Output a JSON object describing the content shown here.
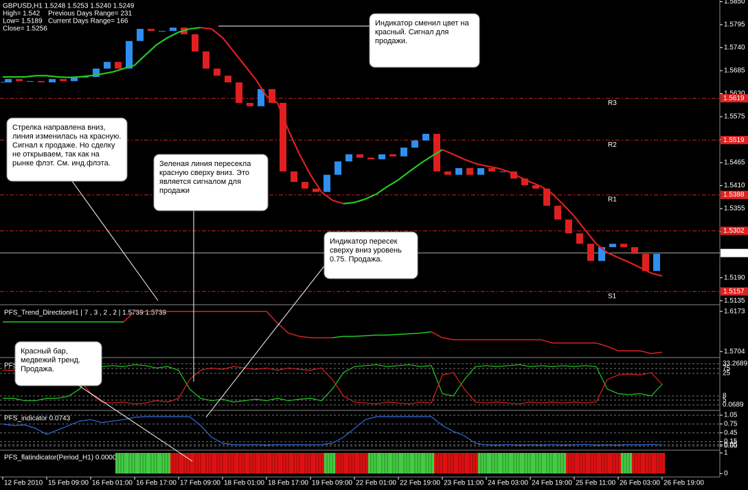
{
  "chart_data": [
    {
      "type": "candlestick",
      "title": "GBPUSD,H1 1.5248 1.5253 1.5240 1.5249",
      "info": [
        "High= 1.542",
        "Previous Days Range= 231",
        "Low= 1.5189",
        "Current Days Range= 166",
        "Close= 1.5256"
      ],
      "categories": [
        "12 Feb 2010",
        null,
        null,
        null,
        "15 Feb 09:00",
        null,
        null,
        null,
        "16 Feb 01:00",
        null,
        null,
        null,
        "16 Feb 17:00",
        null,
        null,
        null,
        "17 Feb 09:00",
        null,
        null,
        null,
        "18 Feb 01:00",
        null,
        null,
        null,
        "18 Feb 17:00",
        null,
        null,
        null,
        "19 Feb 09:00",
        null,
        null,
        null,
        "22 Feb 01:00",
        null,
        null,
        null,
        "22 Feb 19:00",
        null,
        null,
        null,
        "23 Feb 11:00",
        null,
        null,
        null,
        "24 Feb 03:00",
        null,
        null,
        null,
        "24 Feb 19:00",
        null,
        null,
        null,
        "25 Feb 11:00",
        null,
        null,
        null,
        "26 Feb 03:00",
        null,
        null,
        null,
        "26 Feb 19:00"
      ],
      "series": [
        {
          "values": [
            1.5657,
            1.5665,
            1.566,
            1.566,
            1.5657,
            1.5665,
            1.566,
            1.5669,
            1.567,
            1.569,
            1.5706,
            1.569,
            1.5756,
            1.5785,
            1.578,
            1.578,
            1.5788,
            1.5772,
            1.5731,
            1.569,
            1.5673,
            1.5657,
            1.5608,
            1.56,
            1.5641,
            1.5608,
            1.5444,
            1.5419,
            1.5403,
            1.5395,
            1.5436,
            1.5468,
            1.5485,
            1.5477,
            1.5473,
            1.5485,
            1.548,
            1.5501,
            1.5518,
            1.5534,
            1.5444,
            1.5436,
            1.5452,
            1.5436,
            1.5452,
            1.5444,
            1.5444,
            1.5427,
            1.5411,
            1.5403,
            1.5362,
            1.5329,
            1.5296,
            1.5271,
            1.523,
            1.5263,
            1.5271,
            1.5263,
            1.5247,
            1.5206,
            1.5247
          ],
          "up_color": "#2f8ff0",
          "down_color": "#e02020"
        },
        {
          "values": [
            1.567,
            1.567,
            1.567,
            1.5673,
            1.5673,
            1.567,
            1.5669,
            1.567,
            1.5673,
            1.5677,
            1.5682,
            1.569,
            1.5698,
            1.5723,
            1.5747,
            1.5764,
            1.5777,
            1.5785,
            1.5788,
            1.5785,
            1.5764,
            1.5731,
            1.5698,
            1.5665,
            1.5624,
            1.5608,
            1.5542,
            1.5485,
            1.5436,
            1.5395,
            1.5375,
            1.5367,
            1.537,
            1.5378,
            1.539,
            1.5408,
            1.5424,
            1.5444,
            1.5463,
            1.548,
            1.5496,
            1.5485,
            1.5473,
            1.5463,
            1.5457,
            1.5452,
            1.5444,
            1.5431,
            1.5419,
            1.5408,
            1.5391,
            1.5365,
            1.5337,
            1.5304,
            1.5271,
            1.525,
            1.5238,
            1.5227,
            1.5214,
            1.5201,
            1.5194
          ],
          "colors": [
            "#22cc22",
            "#22cc22",
            "#22cc22",
            "#22cc22",
            "#22cc22",
            "#22cc22",
            "#22cc22",
            "#22cc22",
            "#22cc22",
            "#22cc22",
            "#22cc22",
            "#22cc22",
            "#22cc22",
            "#22cc22",
            "#22cc22",
            "#22cc22",
            "#22cc22",
            "#22cc22",
            "#22cc22",
            "#e02020",
            "#e02020",
            "#e02020",
            "#e02020",
            "#e02020",
            "#e02020",
            "#e02020",
            "#e02020",
            "#e02020",
            "#e02020",
            "#e02020",
            "#e02020",
            "#e02020",
            "#22cc22",
            "#22cc22",
            "#22cc22",
            "#22cc22",
            "#22cc22",
            "#22cc22",
            "#22cc22",
            "#22cc22",
            "#22cc22",
            "#e02020",
            "#e02020",
            "#e02020",
            "#e02020",
            "#e02020",
            "#e02020",
            "#e02020",
            "#e02020",
            "#e02020",
            "#e02020",
            "#e02020",
            "#e02020",
            "#e02020",
            "#e02020",
            "#e02020",
            "#e02020",
            "#e02020",
            "#e02020",
            "#e02020",
            "#e02020"
          ]
        }
      ],
      "ylim": [
        1.5127,
        1.5854
      ],
      "yticks": [
        {
          "value": 1.585,
          "label": "1.5850"
        },
        1.5795,
        {
          "value": 1.574,
          "label": "1.5740"
        },
        1.5685,
        {
          "value": 1.563,
          "label": "1.5630"
        },
        1.5575,
        {
          "value": 1.552,
          "label": "1.5520"
        },
        1.5465,
        {
          "value": 1.541,
          "label": "1.5410"
        },
        1.5355,
        {
          "value": 1.53,
          "label": "1.5300"
        },
        {
          "value": 1.519,
          "label": "1.5190"
        },
        1.5135
      ],
      "grid": false,
      "levels": [
        {
          "label": "R3",
          "value": 1.5619
        },
        {
          "label": "R2",
          "value": 1.5519
        },
        {
          "label": "R1",
          "value": 1.5388
        },
        {
          "value": 1.5302
        },
        {
          "label": "S1",
          "value": 1.5157
        }
      ],
      "level_color": "#e02020",
      "current": 1.5249,
      "annotations": [
        {
          "lines": [
            "Индикатор сменил цвет на",
            "красный. Сигнал для",
            "продажи."
          ]
        },
        {
          "lines": [
            "Стрелка направлена вниз,",
            "линия изменилась на красную.",
            "Сигнал к продаже. Но сделку",
            "не открываем, так как на",
            "рынке флэт. См. инд.флэта."
          ]
        },
        {
          "lines": [
            "Зеленая линия пересекла",
            "красную сверху вниз. Это",
            "является сигналом для",
            "продажи"
          ]
        },
        {
          "lines": [
            "Индикатор пересек",
            "сверху вниз уровень",
            "0.75. Продажа."
          ]
        },
        {
          "lines": [
            "Красный бар,",
            "медвежий тренд.",
            "Продажа."
          ]
        }
      ]
    },
    {
      "type": "line",
      "title": "PFS_Trend_DirectionH1 | 7 , 3 , 2 , 2 | 1.5739 1.5739",
      "series": [
        {
          "values": [
            1.605,
            1.605,
            1.605,
            1.605,
            1.605,
            1.605,
            1.605,
            1.605,
            1.605,
            1.605,
            1.605,
            1.605,
            1.6173,
            1.6173,
            1.6173,
            1.6173,
            1.6173,
            1.6173,
            1.6173,
            1.6173,
            1.6173,
            1.6173,
            1.6173,
            1.6173,
            1.6173,
            1.6035,
            1.5919,
            1.5881,
            1.5865,
            1.5865,
            1.5865,
            1.5881,
            1.5881,
            1.5888,
            1.5896,
            1.5896,
            1.5904,
            1.5911,
            1.5919,
            1.5935,
            1.5865,
            1.5842,
            1.5842,
            1.5842,
            1.5842,
            1.5842,
            1.5842,
            1.5842,
            1.5842,
            1.5842,
            1.5804,
            1.5804,
            1.5804,
            1.5804,
            1.5804,
            1.5765,
            1.5712,
            1.5712,
            1.5712,
            1.5681,
            1.5696
          ],
          "colors": [
            "#22cc22",
            "#22cc22",
            "#22cc22",
            "#22cc22",
            "#22cc22",
            "#22cc22",
            "#22cc22",
            "#22cc22",
            "#22cc22",
            "#22cc22",
            "#22cc22",
            "#22cc22",
            "#e02020",
            "#e02020",
            "#e02020",
            "#e02020",
            "#e02020",
            "#e02020",
            "#e02020",
            "#e02020",
            "#e02020",
            "#e02020",
            "#e02020",
            "#e02020",
            "#e02020",
            "#e02020",
            "#e02020",
            "#e02020",
            "#e02020",
            "#e02020",
            "#e02020",
            "#22cc22",
            "#22cc22",
            "#22cc22",
            "#22cc22",
            "#22cc22",
            "#22cc22",
            "#22cc22",
            "#22cc22",
            "#22cc22",
            "#e02020",
            "#e02020",
            "#e02020",
            "#e02020",
            "#e02020",
            "#e02020",
            "#e02020",
            "#e02020",
            "#e02020",
            "#e02020",
            "#e02020",
            "#e02020",
            "#e02020",
            "#e02020",
            "#e02020",
            "#e02020",
            "#e02020",
            "#e02020",
            "#e02020",
            "#e02020",
            "#e02020"
          ]
        }
      ],
      "ylim": [
        1.565,
        1.6227
      ],
      "yticks": [
        1.6173,
        1.5704
      ]
    },
    {
      "type": "line",
      "title": "PFS",
      "series": [
        {
          "color": "#22cc22",
          "values": [
            20,
            20,
            15,
            15,
            20,
            20,
            25,
            40,
            70,
            88,
            90,
            88,
            92,
            90,
            85,
            88,
            80,
            40,
            20,
            15,
            18,
            12,
            15,
            18,
            15,
            20,
            15,
            18,
            20,
            15,
            40,
            75,
            88,
            90,
            92,
            88,
            90,
            92,
            88,
            90,
            30,
            25,
            60,
            88,
            90,
            88,
            90,
            92,
            88,
            90,
            88,
            90,
            88,
            90,
            88,
            40,
            30,
            28,
            30,
            25,
            50
          ]
        },
        {
          "color": "#e02020",
          "values": [
            80,
            80,
            85,
            85,
            80,
            80,
            75,
            60,
            30,
            12,
            10,
            12,
            8,
            10,
            15,
            12,
            20,
            60,
            80,
            85,
            82,
            88,
            85,
            82,
            85,
            80,
            85,
            82,
            80,
            85,
            60,
            25,
            12,
            10,
            8,
            12,
            10,
            8,
            12,
            10,
            70,
            75,
            40,
            12,
            10,
            12,
            10,
            8,
            12,
            10,
            12,
            10,
            12,
            10,
            12,
            60,
            70,
            72,
            70,
            75,
            50
          ]
        }
      ],
      "ylim": [
        0,
        100
      ],
      "tick_labels": [
        "33.2689",
        "75",
        "25",
        "8",
        "5",
        "0.0689"
      ]
    },
    {
      "type": "line",
      "title": "PFS_indicator 0.0743",
      "series": [
        {
          "color": "#2f6fe0",
          "values": [
            0.75,
            0.7,
            0.72,
            0.6,
            0.4,
            0.55,
            0.7,
            0.85,
            0.9,
            0.8,
            0.85,
            0.9,
            0.98,
            1,
            1,
            1,
            1,
            1,
            0.7,
            0.3,
            0.1,
            0.05,
            0.04,
            0.05,
            0.03,
            0.05,
            0.04,
            0.05,
            0.04,
            0.05,
            0.1,
            0.3,
            0.6,
            0.9,
            1,
            1,
            1,
            1,
            1,
            1,
            0.7,
            0.5,
            0.35,
            0.1,
            0.04,
            0.03,
            0.05,
            0.03,
            0.04,
            0.03,
            0.05,
            0.03,
            0.04,
            0.06,
            0.03,
            0.04,
            0.03,
            0.05,
            0.04,
            0.06,
            0.04
          ]
        }
      ],
      "ylim": [
        0,
        1.05
      ],
      "yticks": [
        1.05,
        0.75,
        0.45,
        0.15,
        0.05,
        {
          "value": 0,
          "label": "0.00"
        }
      ]
    },
    {
      "type": "bar",
      "title": "PFS_flatindicator(Period_H1) 0.0000 1.0000 0.0000 0.0000",
      "values": [
        null,
        null,
        null,
        null,
        null,
        null,
        null,
        null,
        null,
        null,
        null,
        1,
        1,
        1,
        1,
        1,
        1,
        1,
        1,
        1,
        1,
        1,
        1,
        1,
        1,
        1,
        1,
        1,
        1,
        1,
        1,
        1,
        1,
        1,
        1,
        1,
        1,
        1,
        1,
        1,
        1,
        1,
        1,
        1,
        1,
        1,
        1,
        1,
        1,
        1,
        1,
        1,
        1,
        1,
        1,
        1,
        1,
        1,
        1,
        1,
        1
      ],
      "colors": [
        null,
        null,
        null,
        null,
        null,
        null,
        null,
        null,
        null,
        null,
        null,
        "#44cc44",
        "#44cc44",
        "#44cc44",
        "#44cc44",
        "#44cc44",
        "#dd1111",
        "#dd1111",
        "#dd1111",
        "#dd1111",
        "#dd1111",
        "#dd1111",
        "#dd1111",
        "#dd1111",
        "#dd1111",
        "#dd1111",
        "#dd1111",
        "#dd1111",
        "#dd1111",
        "#dd1111",
        "#44cc44",
        "#dd1111",
        "#dd1111",
        "#dd1111",
        "#44cc44",
        "#44cc44",
        "#44cc44",
        "#44cc44",
        "#44cc44",
        "#44cc44",
        "#dd1111",
        "#dd1111",
        "#dd1111",
        "#dd1111",
        "#44cc44",
        "#44cc44",
        "#44cc44",
        "#44cc44",
        "#44cc44",
        "#44cc44",
        "#44cc44",
        "#44cc44",
        "#dd1111",
        "#dd1111",
        "#dd1111",
        "#dd1111",
        "#dd1111",
        "#44cc44",
        "#dd1111",
        "#dd1111",
        "#dd1111"
      ],
      "ylim": [
        0,
        1
      ],
      "yticks": [
        1,
        0
      ]
    }
  ]
}
